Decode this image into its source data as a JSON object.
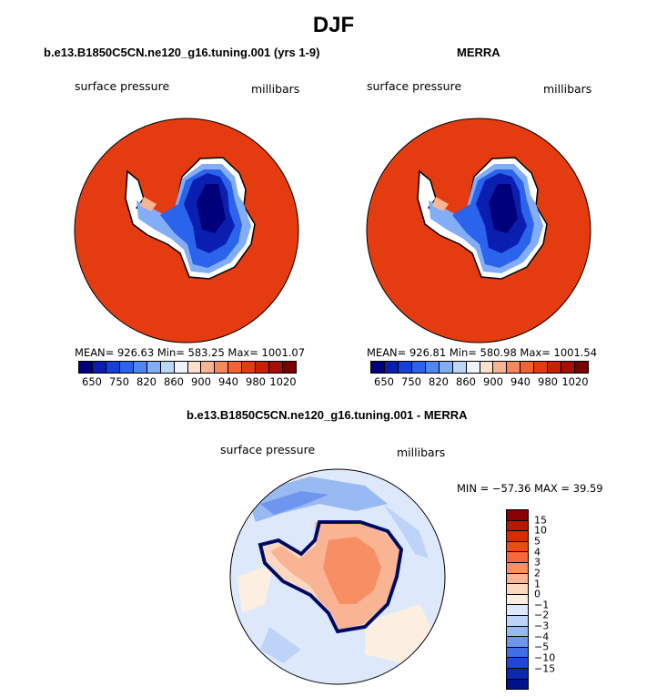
{
  "title": "DJF",
  "left_panel": {
    "title": "b.e13.B1850C5CN.ne120_g16.tuning.001 (yrs 1-9)",
    "variable": "surface pressure",
    "units": "millibars",
    "stats": "MEAN= 926.63   Min= 583.25   Max= 1001.07"
  },
  "right_panel": {
    "title": "MERRA",
    "variable": "surface pressure",
    "units": "millibars",
    "stats": "MEAN= 926.81   Min= 580.98   Max= 1001.54"
  },
  "diff_panel": {
    "title": "b.e13.B1850C5CN.ne120_g16.tuning.001 - MERRA",
    "variable": "surface pressure",
    "units": "millibars",
    "stats": "MIN = −57.36  MAX =   39.59"
  },
  "colorbar_top": {
    "ticks": [
      "650",
      "750",
      "820",
      "860",
      "900",
      "940",
      "980",
      "1020"
    ],
    "colors": [
      "#00007a",
      "#0a1fb0",
      "#1440d8",
      "#2a63ec",
      "#4e86f2",
      "#83adf6",
      "#bcd6fb",
      "#eef3ff",
      "#fde0cc",
      "#f9b493",
      "#f48a5c",
      "#ef6430",
      "#e43c10",
      "#c82000",
      "#a51000",
      "#7a0000"
    ]
  },
  "colorbar_diff": {
    "ticks": [
      "15",
      "10",
      "5",
      "4",
      "3",
      "2",
      "1",
      "0",
      "−1",
      "−2",
      "−3",
      "−4",
      "−5",
      "−10",
      "−15"
    ],
    "colors": [
      "#8b0000",
      "#b81800",
      "#d92b00",
      "#ee4a14",
      "#f4683a",
      "#f78e64",
      "#f9b493",
      "#fcd8c0",
      "#fdeee2",
      "#dde9fb",
      "#bdd4f8",
      "#99b9f3",
      "#6f96ee",
      "#3f6ee6",
      "#1f48d2",
      "#0c28b2",
      "#00128a"
    ]
  }
}
